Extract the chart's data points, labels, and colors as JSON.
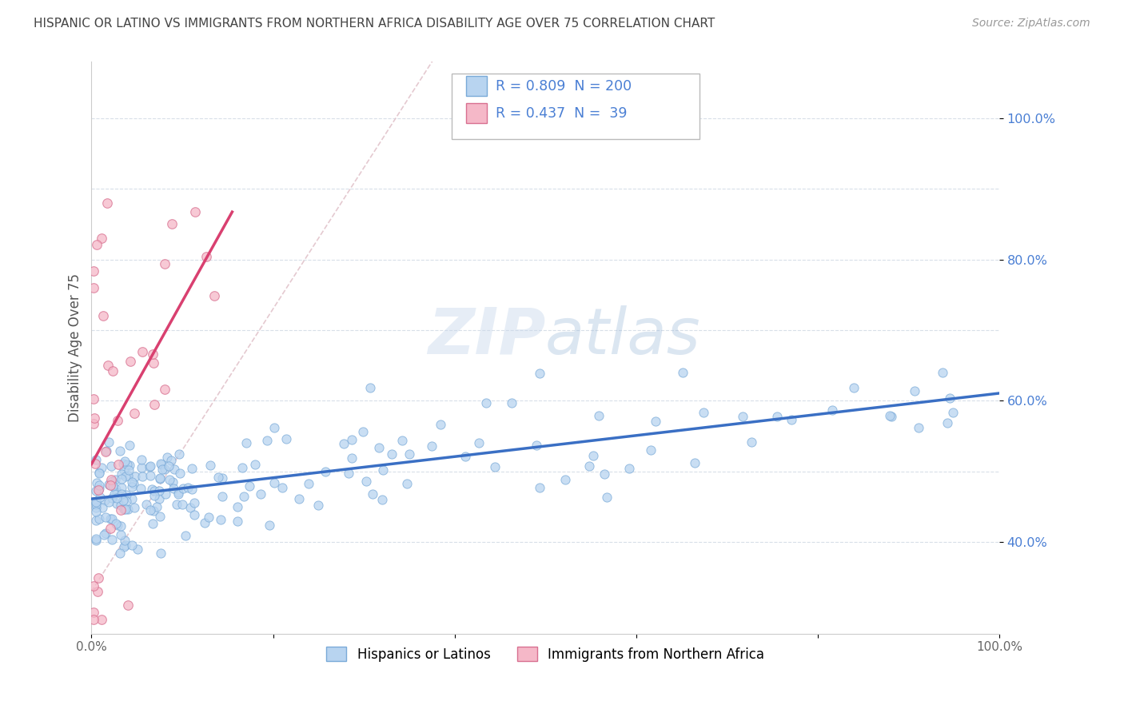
{
  "title": "HISPANIC OR LATINO VS IMMIGRANTS FROM NORTHERN AFRICA DISABILITY AGE OVER 75 CORRELATION CHART",
  "source": "Source: ZipAtlas.com",
  "ylabel": "Disability Age Over 75",
  "watermark_zip": "ZIP",
  "watermark_atlas": "atlas",
  "blue_R": 0.809,
  "blue_N": 200,
  "pink_R": 0.437,
  "pink_N": 39,
  "blue_color": "#b8d4f0",
  "pink_color": "#f5b8c8",
  "blue_line_color": "#3a6fc4",
  "pink_line_color": "#d94070",
  "blue_dot_edge": "#7aaad8",
  "pink_dot_edge": "#d87090",
  "bg_color": "#ffffff",
  "grid_color": "#d8dfe8",
  "title_color": "#444444",
  "axis_label_color": "#4a7fd4",
  "xlim": [
    0.0,
    1.0
  ],
  "ylim": [
    0.27,
    1.08
  ],
  "right_yticks": [
    0.4,
    0.6,
    0.8,
    1.0
  ],
  "right_ytick_labels": [
    "40.0%",
    "60.0%",
    "80.0%",
    "100.0%"
  ],
  "grid_yticks": [
    0.4,
    0.5,
    0.6,
    0.7,
    0.8,
    0.9,
    1.0
  ],
  "xticks": [
    0.0,
    0.2,
    0.4,
    0.6,
    0.8,
    1.0
  ],
  "xtick_labels": [
    "0.0%",
    "",
    "",
    "",
    "",
    "100.0%"
  ],
  "legend1_label": "Hispanics or Latinos",
  "legend2_label": "Immigrants from Northern Africa"
}
